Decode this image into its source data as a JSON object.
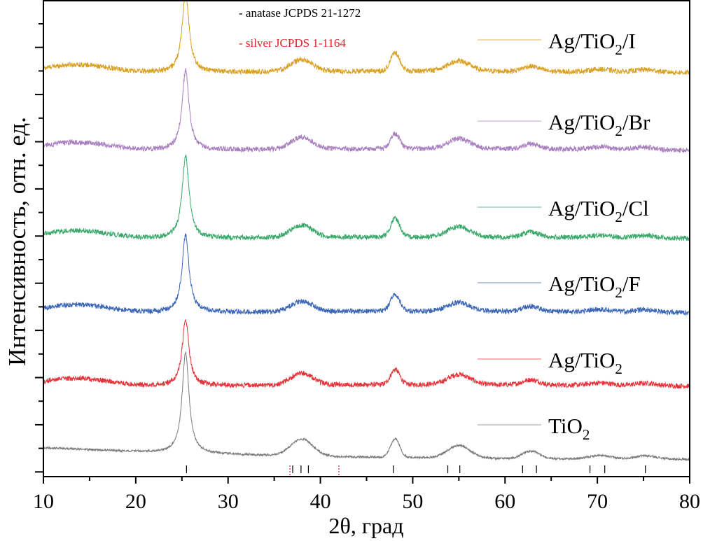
{
  "chart_data": {
    "type": "line",
    "title": "",
    "xlabel": "2θ, град",
    "ylabel": "Интенсивность, отн. ед.",
    "xlim": [
      10,
      80
    ],
    "x_ticks": [
      10,
      20,
      30,
      40,
      50,
      60,
      70,
      80
    ],
    "x_tick_labels": [
      "10",
      "20",
      "30",
      "40",
      "50",
      "60",
      "70",
      "80"
    ],
    "y_ticks_labeled": false,
    "grid": false,
    "legend": "right, each entry placed above its trace",
    "reference_annotations": [
      {
        "text": "- anatase JCPDS 21-1272",
        "color": "#000000"
      },
      {
        "text": "- silver JCPDS 1-1164",
        "color": "#e0202a"
      }
    ],
    "reference_sticks": {
      "anatase": {
        "color": "#000000",
        "style": "solid",
        "positions": [
          25.5,
          37.0,
          37.9,
          38.7,
          47.9,
          53.8,
          55.1,
          61.9,
          63.4,
          69.2,
          70.8,
          75.2
        ]
      },
      "silver": {
        "color": "#e0202a",
        "style": "dotted",
        "positions": [
          36.7,
          42.0
        ]
      }
    },
    "peaks_2theta": [
      25.4,
      38.0,
      48.1,
      55.0,
      62.8,
      70.3,
      75.2
    ],
    "series": [
      {
        "name": "Ag/TiO2/I",
        "label_main": "Ag/TiO",
        "label_sub": "2",
        "label_suffix": "/I",
        "color": "#d9a021",
        "offset": 5,
        "baseline": 0.42,
        "main_peak": 0.95,
        "minor_peaks": [
          0.14,
          0.22,
          0.12,
          0.06,
          0.03,
          0.03
        ],
        "low_angle_hump": 0.1
      },
      {
        "name": "Ag/TiO2/Br",
        "label_main": "Ag/TiO",
        "label_sub": "2",
        "label_suffix": "/Br",
        "color": "#a97fc0",
        "offset": 4,
        "baseline": 0.42,
        "main_peak": 0.95,
        "minor_peaks": [
          0.14,
          0.18,
          0.12,
          0.06,
          0.03,
          0.03
        ],
        "low_angle_hump": 0.1
      },
      {
        "name": "Ag/TiO2/Cl",
        "label_main": "Ag/TiO",
        "label_sub": "2",
        "label_suffix": "/Cl",
        "color": "#3aa86a",
        "offset": 3,
        "baseline": 0.42,
        "main_peak": 0.98,
        "minor_peaks": [
          0.14,
          0.22,
          0.12,
          0.06,
          0.03,
          0.03
        ],
        "low_angle_hump": 0.1
      },
      {
        "name": "Ag/TiO2/F",
        "label_main": "Ag/TiO",
        "label_sub": "2",
        "label_suffix": "/F",
        "color": "#3b66b5",
        "offset": 2,
        "baseline": 0.42,
        "main_peak": 0.92,
        "minor_peaks": [
          0.12,
          0.2,
          0.1,
          0.06,
          0.03,
          0.03
        ],
        "low_angle_hump": 0.1
      },
      {
        "name": "Ag/TiO2",
        "label_main": "Ag/TiO",
        "label_sub": "2",
        "label_suffix": "",
        "color": "#e5333b",
        "offset": 1,
        "baseline": 0.42,
        "main_peak": 0.78,
        "minor_peaks": [
          0.14,
          0.18,
          0.12,
          0.06,
          0.03,
          0.03
        ],
        "low_angle_hump": 0.1
      },
      {
        "name": "TiO2",
        "label_main": "TiO",
        "label_sub": "2",
        "label_suffix": "",
        "color": "#7a7a7a",
        "offset": 0,
        "baseline": 0.15,
        "main_peak": 1.2,
        "minor_peaks": [
          0.2,
          0.22,
          0.15,
          0.09,
          0.04,
          0.04
        ],
        "low_angle_hump": 0.0
      }
    ]
  }
}
